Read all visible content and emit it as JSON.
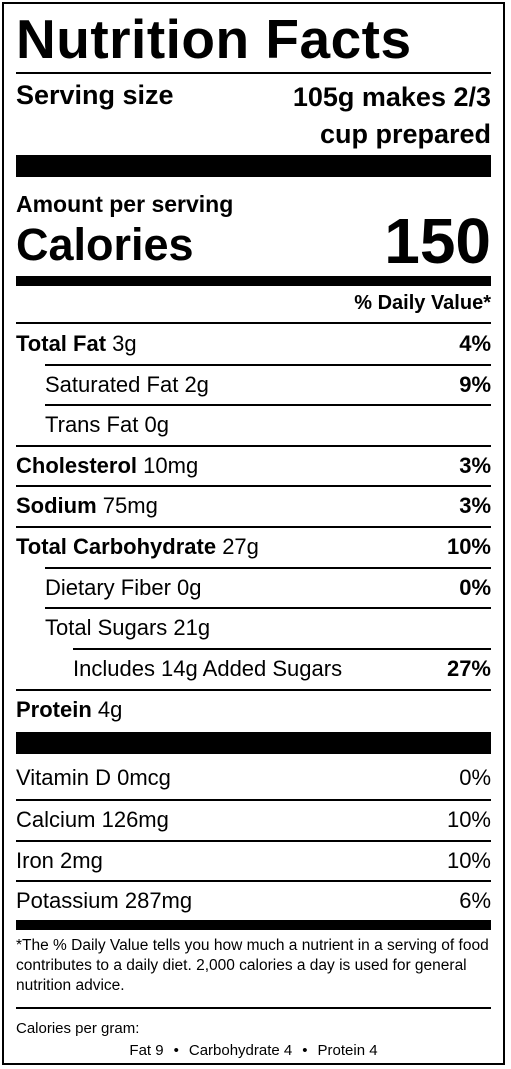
{
  "title": "Nutrition Facts",
  "serving": {
    "label": "Serving size",
    "value": "105g makes 2/3 cup prepared"
  },
  "amount_per_serving": "Amount per serving",
  "calories": {
    "label": "Calories",
    "value": "150"
  },
  "daily_value_header": "% Daily Value*",
  "nutrients": [
    {
      "name": "Total Fat",
      "amount": "3g",
      "dv": "4%"
    },
    {
      "name": "Saturated Fat",
      "amount": "2g",
      "dv": "9%"
    },
    {
      "name": "Trans Fat",
      "amount": "0g",
      "dv": ""
    },
    {
      "name": "Cholesterol",
      "amount": "10mg",
      "dv": "3%"
    },
    {
      "name": "Sodium",
      "amount": "75mg",
      "dv": "3%"
    },
    {
      "name": "Total Carbohydrate",
      "amount": "27g",
      "dv": "10%"
    },
    {
      "name": "Dietary Fiber",
      "amount": "0g",
      "dv": "0%"
    },
    {
      "name": "Total Sugars",
      "amount": "21g",
      "dv": ""
    },
    {
      "name": "Includes 14g Added Sugars",
      "amount": "",
      "dv": "27%"
    },
    {
      "name": "Protein",
      "amount": "4g",
      "dv": ""
    }
  ],
  "vitamins": [
    {
      "name": "Vitamin D",
      "amount": "0mcg",
      "dv": "0%"
    },
    {
      "name": "Calcium",
      "amount": "126mg",
      "dv": "10%"
    },
    {
      "name": "Iron",
      "amount": "2mg",
      "dv": "10%"
    },
    {
      "name": "Potassium",
      "amount": "287mg",
      "dv": "6%"
    }
  ],
  "footnote": "*The % Daily Value tells you how much a nutrient in a serving of food contributes to a daily diet. 2,000 calories a day is used for general nutrition advice.",
  "calories_per_gram": {
    "label": "Calories per gram:",
    "fat": "Fat 9",
    "carbohydrate": "Carbohydrate 4",
    "protein": "Protein 4",
    "separator": "•"
  }
}
